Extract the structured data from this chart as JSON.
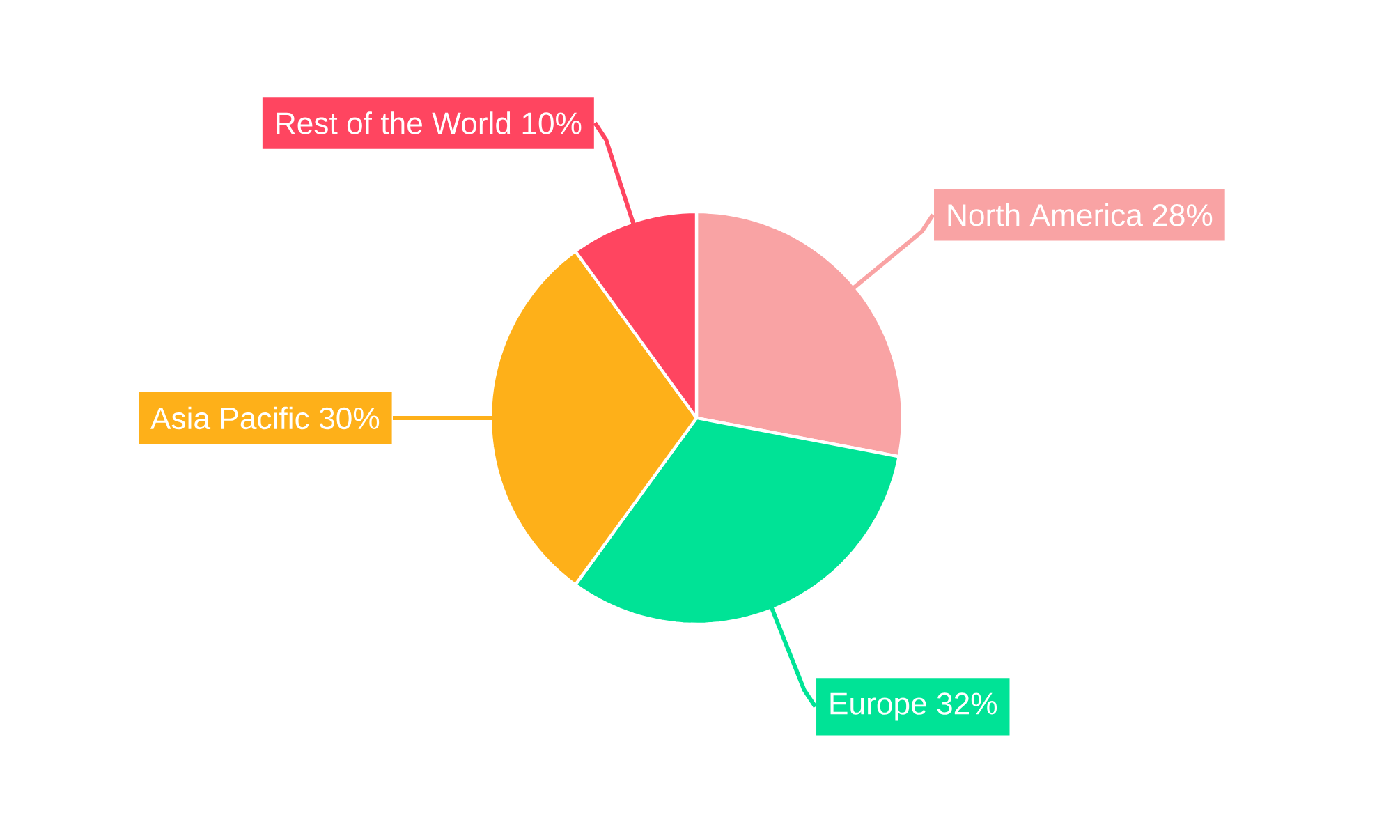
{
  "chart_data": {
    "type": "pie",
    "categories": [
      "North America",
      "Europe",
      "Asia Pacific",
      "Rest of the World"
    ],
    "values": [
      28,
      32,
      30,
      10
    ],
    "colors": [
      "#f9a3a4",
      "#00e396",
      "#feb019",
      "#ff4560"
    ],
    "value_labels": [
      "28%",
      "32%",
      "30%",
      "10%"
    ]
  }
}
